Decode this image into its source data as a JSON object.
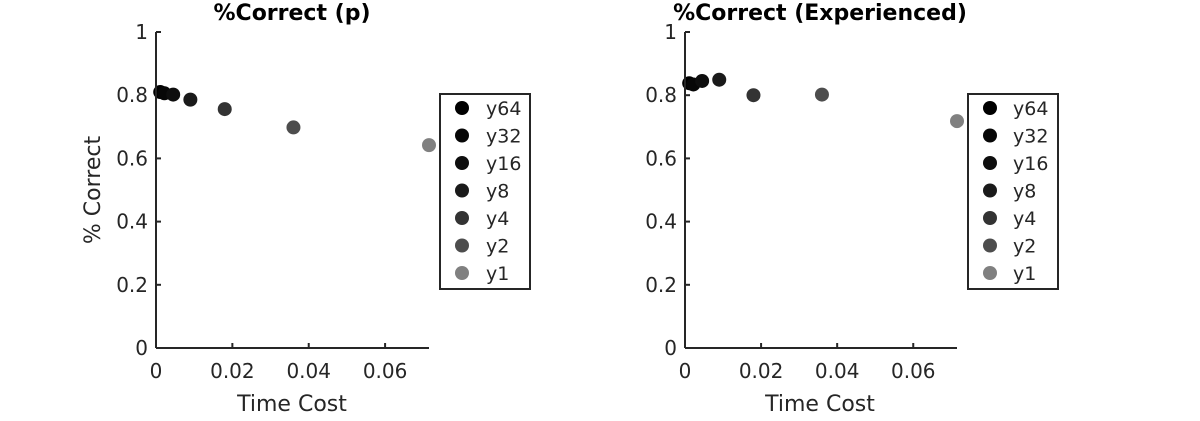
{
  "chart_data": [
    {
      "type": "scatter",
      "title": "%Correct (p)",
      "xlabel": "Time Cost",
      "ylabel": "% Correct",
      "xlim": [
        0,
        0.0715
      ],
      "ylim": [
        0,
        1
      ],
      "xticks": [
        "0",
        "0.02",
        "0.04",
        "0.06"
      ],
      "yticks": [
        "0",
        "0.2",
        "0.4",
        "0.6",
        "0.8",
        "1"
      ],
      "grid": false,
      "legend_position": "right",
      "series": [
        {
          "name": "y64",
          "x": [
            0.0011
          ],
          "y": [
            0.81
          ],
          "color": "#000000"
        },
        {
          "name": "y32",
          "x": [
            0.0022
          ],
          "y": [
            0.806
          ],
          "color": "#070707"
        },
        {
          "name": "y16",
          "x": [
            0.0045
          ],
          "y": [
            0.802
          ],
          "color": "#0e0e0e"
        },
        {
          "name": "y8",
          "x": [
            0.009
          ],
          "y": [
            0.786
          ],
          "color": "#1a1a1a"
        },
        {
          "name": "y4",
          "x": [
            0.018
          ],
          "y": [
            0.756
          ],
          "color": "#333333"
        },
        {
          "name": "y2",
          "x": [
            0.036
          ],
          "y": [
            0.698
          ],
          "color": "#4d4d4d"
        },
        {
          "name": "y1",
          "x": [
            0.0715
          ],
          "y": [
            0.642
          ],
          "color": "#808080"
        }
      ]
    },
    {
      "type": "scatter",
      "title": "%Correct (Experienced)",
      "xlabel": "Time Cost",
      "ylabel": "",
      "xlim": [
        0,
        0.0715
      ],
      "ylim": [
        0,
        1
      ],
      "xticks": [
        "0",
        "0.02",
        "0.04",
        "0.06"
      ],
      "yticks": [
        "0",
        "0.2",
        "0.4",
        "0.6",
        "0.8",
        "1"
      ],
      "grid": false,
      "legend_position": "right",
      "series": [
        {
          "name": "y64",
          "x": [
            0.0011
          ],
          "y": [
            0.838
          ],
          "color": "#000000"
        },
        {
          "name": "y32",
          "x": [
            0.0022
          ],
          "y": [
            0.834
          ],
          "color": "#070707"
        },
        {
          "name": "y16",
          "x": [
            0.0045
          ],
          "y": [
            0.845
          ],
          "color": "#0e0e0e"
        },
        {
          "name": "y8",
          "x": [
            0.009
          ],
          "y": [
            0.849
          ],
          "color": "#1a1a1a"
        },
        {
          "name": "y4",
          "x": [
            0.018
          ],
          "y": [
            0.8
          ],
          "color": "#333333"
        },
        {
          "name": "y2",
          "x": [
            0.036
          ],
          "y": [
            0.802
          ],
          "color": "#4d4d4d"
        },
        {
          "name": "y1",
          "x": [
            0.0715
          ],
          "y": [
            0.718
          ],
          "color": "#808080"
        }
      ]
    }
  ]
}
